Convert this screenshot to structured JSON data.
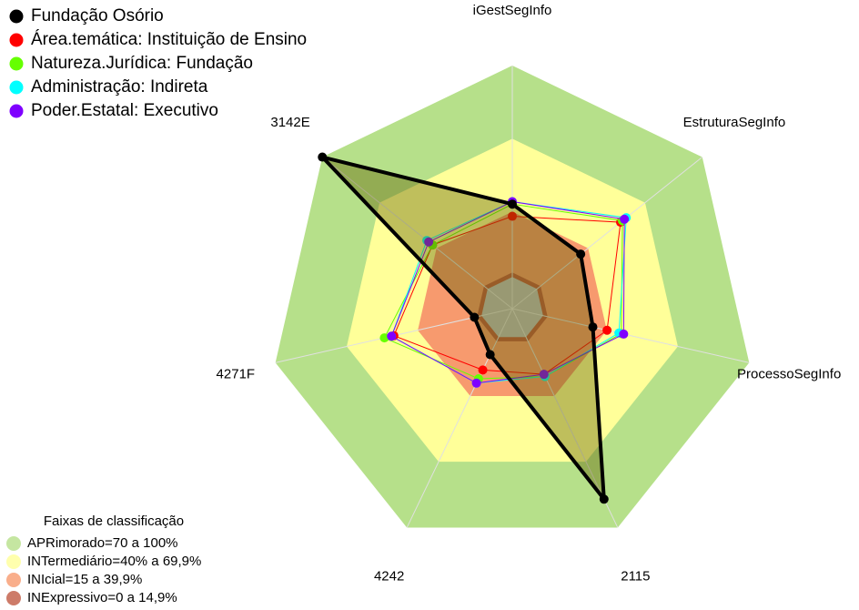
{
  "chart_data": {
    "type": "radar",
    "categories": [
      "iGestSegInfo",
      "EstruturaSegInfo",
      "ProcessoSegInfo",
      "2115",
      "4242",
      "4271F",
      "3142E"
    ],
    "ylim": [
      0,
      100
    ],
    "series": [
      {
        "name": "Fundação Osório",
        "color": "#000000",
        "values": [
          43,
          36,
          34,
          87,
          21,
          16,
          100
        ]
      },
      {
        "name": "Área.temática: Instituição de Ensino",
        "color": "#ff0000",
        "values": [
          38,
          57,
          40,
          30,
          28,
          50,
          42
        ]
      },
      {
        "name": "Natureza.Jurídica: Fundação",
        "color": "#66ff00",
        "values": [
          43,
          58,
          46,
          31,
          32,
          54,
          42
        ]
      },
      {
        "name": "Administração: Indireta",
        "color": "#00ffff",
        "values": [
          44,
          60,
          45,
          31,
          34,
          51,
          45
        ]
      },
      {
        "name": "Poder.Estatal: Executivo",
        "color": "#7f00ff",
        "values": [
          44,
          59,
          47,
          30,
          34,
          51,
          44
        ]
      }
    ],
    "bands_title": "Faixas de classificação",
    "bands": [
      {
        "label": "APRimorado=70 a 100%",
        "from": 70,
        "to": 100,
        "color": "#b6e08a"
      },
      {
        "label": "INTermediário=40% a 69,9%",
        "from": 40,
        "to": 69.9,
        "color": "#ffff99"
      },
      {
        "label": "INIcial=15 a 39,9%",
        "from": 15,
        "to": 39.9,
        "color": "#f79a6e"
      },
      {
        "label": "INExpressivo=0 a 14,9%",
        "from": 0,
        "to": 14.9,
        "color": "#c05a44"
      }
    ]
  }
}
